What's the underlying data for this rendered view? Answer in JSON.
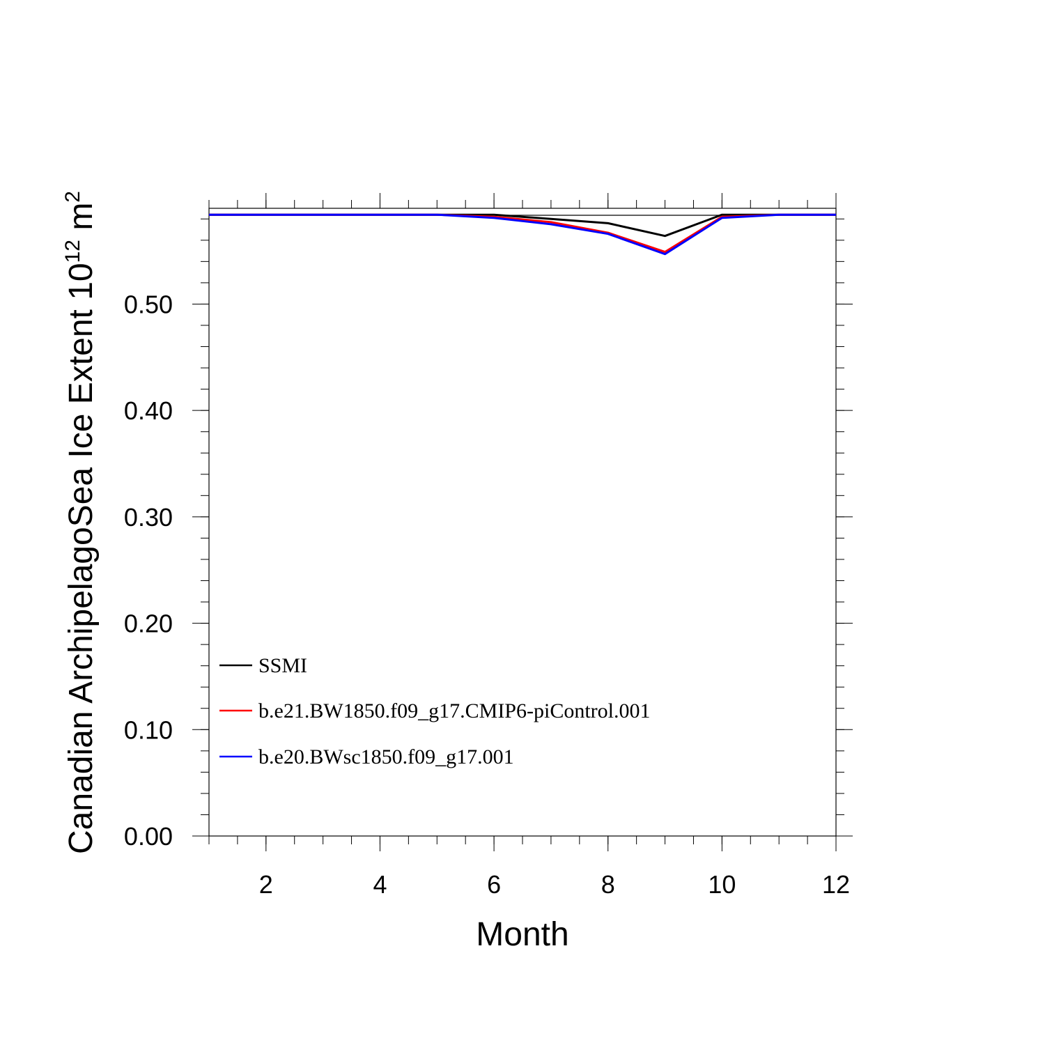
{
  "chart_data": {
    "type": "line",
    "xlabel": "Month",
    "ylabel": {
      "main": "Canadian ArchipelagoSea Ice Extent 10",
      "exponent": "12",
      "unit_tail": " m",
      "unit_exponent": "2"
    },
    "xlim": [
      1,
      12
    ],
    "ylim": [
      0,
      0.59
    ],
    "xticks": [
      2,
      4,
      6,
      8,
      10,
      12
    ],
    "xtick_labels": [
      "2",
      "4",
      "6",
      "8",
      "10",
      "12"
    ],
    "yticks": [
      0,
      0.1,
      0.2,
      0.3,
      0.4,
      0.5
    ],
    "ytick_labels": [
      "0.00",
      "0.10",
      "0.20",
      "0.30",
      "0.40",
      "0.50"
    ],
    "x": [
      1,
      2,
      3,
      4,
      5,
      6,
      7,
      8,
      9,
      10,
      11,
      12
    ],
    "series": [
      {
        "name": "SSMI",
        "color": "#000000",
        "values": [
          0.584,
          0.584,
          0.584,
          0.584,
          0.584,
          0.584,
          0.58,
          0.576,
          0.564,
          0.584,
          0.584,
          0.584
        ]
      },
      {
        "name": "b.e21.BW1850.f09_g17.CMIP6-piControl.001",
        "color": "#ff0000",
        "values": [
          0.584,
          0.584,
          0.584,
          0.584,
          0.584,
          0.582,
          0.577,
          0.567,
          0.549,
          0.582,
          0.584,
          0.584
        ]
      },
      {
        "name": "b.e20.BWsc1850.f09_g17.001",
        "color": "#0000ff",
        "values": [
          0.584,
          0.584,
          0.584,
          0.584,
          0.584,
          0.581,
          0.575,
          0.566,
          0.547,
          0.581,
          0.584,
          0.584
        ]
      }
    ],
    "legend_position": "lower-left",
    "grid": false
  }
}
